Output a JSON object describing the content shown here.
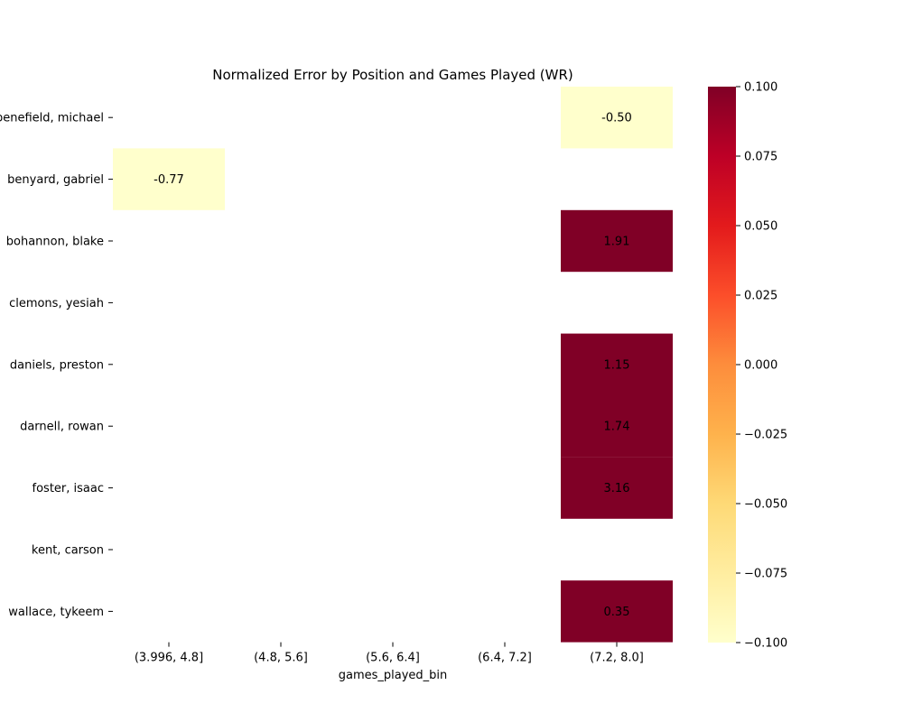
{
  "chart_data": {
    "type": "heatmap",
    "title": "Normalized Error by Position and Games Played (WR)",
    "xlabel": "games_played_bin",
    "ylabel": "",
    "x_categories": [
      "(3.996, 4.8]",
      "(4.8, 5.6]",
      "(5.6, 6.4]",
      "(6.4, 7.2]",
      "(7.2, 8.0]"
    ],
    "y_categories": [
      "benefield, michael",
      "benyard, gabriel",
      "bohannon, blake",
      "clemons, yesiah",
      "daniels, preston",
      "darnell, rowan",
      "foster, isaac",
      "kent, carson",
      "wallace, tykeem"
    ],
    "cells": [
      {
        "x": "(7.2, 8.0]",
        "y": "benefield, michael",
        "value": -0.5,
        "label": "-0.50"
      },
      {
        "x": "(3.996, 4.8]",
        "y": "benyard, gabriel",
        "value": -0.77,
        "label": "-0.77"
      },
      {
        "x": "(7.2, 8.0]",
        "y": "bohannon, blake",
        "value": 1.91,
        "label": "1.91"
      },
      {
        "x": "(7.2, 8.0]",
        "y": "daniels, preston",
        "value": 1.15,
        "label": "1.15"
      },
      {
        "x": "(7.2, 8.0]",
        "y": "darnell, rowan",
        "value": 1.74,
        "label": "1.74"
      },
      {
        "x": "(7.2, 8.0]",
        "y": "foster, isaac",
        "value": 3.16,
        "label": "3.16"
      },
      {
        "x": "(7.2, 8.0]",
        "y": "wallace, tykeem",
        "value": 0.35,
        "label": "0.35"
      }
    ],
    "colormap": "YlOrRd",
    "colorbar": {
      "vmin": -0.1,
      "vmax": 0.1,
      "ticks": [
        "0.100",
        "0.075",
        "0.050",
        "0.025",
        "0.000",
        "−0.025",
        "−0.050",
        "−0.075",
        "−0.100"
      ],
      "tick_values": [
        0.1,
        0.075,
        0.05,
        0.025,
        0.0,
        -0.025,
        -0.05,
        -0.075,
        -0.1
      ]
    },
    "colors": {
      "low": "#ffffcc",
      "high": "#800026",
      "stops": [
        "#ffffcc",
        "#ffeda0",
        "#fed976",
        "#feb24c",
        "#fd8d3c",
        "#fc4e2a",
        "#e31a1c",
        "#bd0026",
        "#800026"
      ]
    }
  }
}
